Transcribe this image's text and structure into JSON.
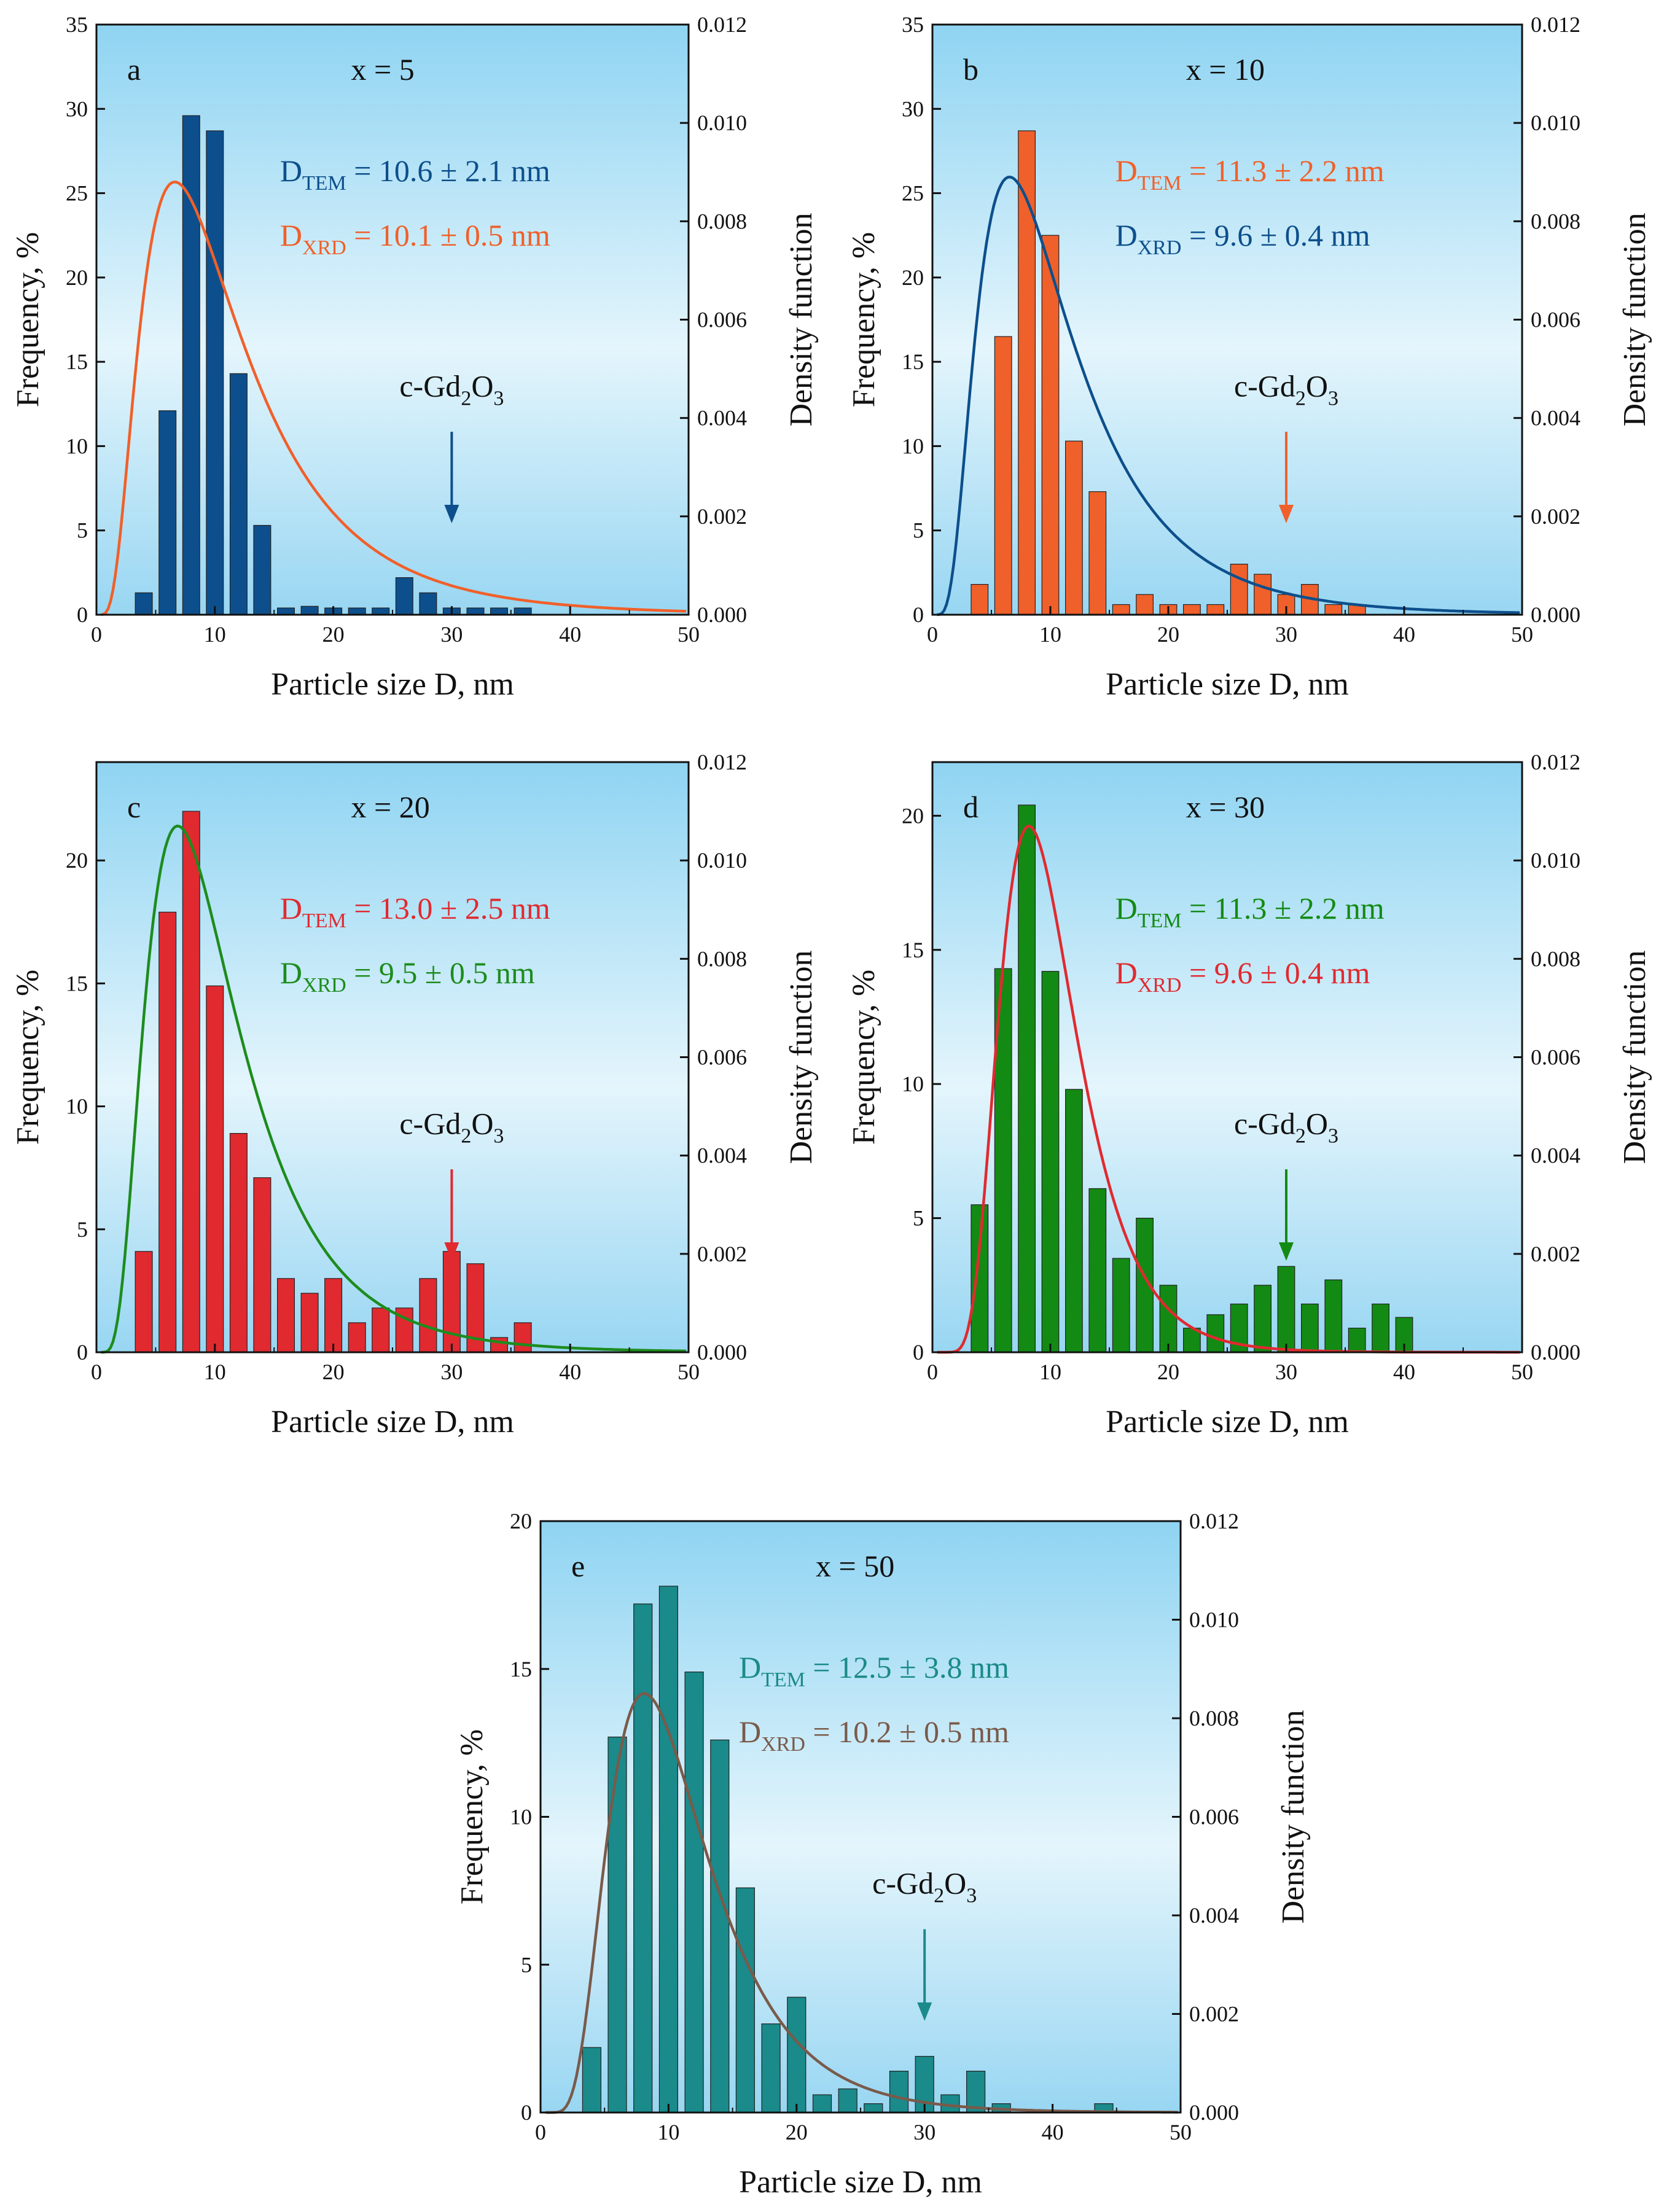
{
  "chart_data": [
    {
      "type": "bar",
      "panel_label": "a",
      "composition": "x = 5",
      "bar_color": "#0d4f8c",
      "curve_color": "#f0602a",
      "bars_x": [
        4,
        6,
        8,
        10,
        12,
        14,
        16,
        18,
        20,
        22,
        24,
        26,
        28,
        30,
        32,
        34,
        36
      ],
      "bars_y": [
        1.3,
        12.1,
        29.6,
        28.7,
        14.3,
        5.3,
        0.4,
        0.5,
        0.4,
        0.4,
        0.4,
        2.2,
        1.3,
        0.4,
        0.4,
        0.4,
        0.4
      ],
      "density_curve": {
        "type": "lognormal",
        "d0": 10.1,
        "sigma": 0.65
      },
      "dim_lines": [
        {
          "main": "D",
          "sub": "TEM",
          "value": " = 10.6 ± 2.1 nm",
          "color": "#0d4f8c"
        },
        {
          "main": "D",
          "sub": "XRD",
          "value": " = 10.1 ± 0.5 nm",
          "color": "#f0602a"
        }
      ],
      "phase_label": {
        "prefix": "c-Gd",
        "sub1": "2",
        "mid": "O",
        "sub2": "3"
      },
      "arrow_x": 30,
      "arrow_color": "#0d4f8c",
      "xlabel": "Particle size D, nm",
      "ylabel": "Frequency, %",
      "y2label": "Density function",
      "xlim": [
        0,
        50
      ],
      "xticks": [
        0,
        10,
        20,
        30,
        40,
        50
      ],
      "ylim": [
        0,
        35
      ],
      "yticks": [
        0,
        5,
        10,
        15,
        20,
        25,
        30,
        35
      ],
      "y2lim": [
        0,
        0.012
      ],
      "y2ticks": [
        "0.000",
        "0.002",
        "0.004",
        "0.006",
        "0.008",
        "0.010",
        "0.012"
      ]
    },
    {
      "type": "bar",
      "panel_label": "b",
      "composition": "x = 10",
      "bar_color": "#f0602a",
      "curve_color": "#0d4f8c",
      "bars_x": [
        4,
        6,
        8,
        10,
        12,
        14,
        16,
        18,
        20,
        22,
        24,
        26,
        28,
        30,
        32,
        34,
        36
      ],
      "bars_y": [
        1.8,
        16.5,
        28.7,
        22.5,
        10.3,
        7.3,
        0.6,
        1.2,
        0.6,
        0.6,
        0.6,
        3.0,
        2.4,
        1.2,
        1.8,
        0.6,
        0.6
      ],
      "density_curve": {
        "type": "lognormal",
        "d0": 9.6,
        "sigma": 0.62
      },
      "dim_lines": [
        {
          "main": "D",
          "sub": "TEM",
          "value": " = 11.3 ± 2.2 nm",
          "color": "#f0602a"
        },
        {
          "main": "D",
          "sub": "XRD",
          "value": " =   9.6 ± 0.4 nm",
          "color": "#0d4f8c"
        }
      ],
      "phase_label": {
        "prefix": "c-Gd",
        "sub1": "2",
        "mid": "O",
        "sub2": "3"
      },
      "arrow_x": 30,
      "arrow_color": "#f0602a",
      "xlabel": "Particle size D, nm",
      "ylabel": "Frequency, %",
      "y2label": "Density function",
      "xlim": [
        0,
        50
      ],
      "xticks": [
        0,
        10,
        20,
        30,
        40,
        50
      ],
      "ylim": [
        0,
        35
      ],
      "yticks": [
        0,
        5,
        10,
        15,
        20,
        25,
        30,
        35
      ],
      "y2lim": [
        0,
        0.012
      ],
      "y2ticks": [
        "0.000",
        "0.002",
        "0.004",
        "0.006",
        "0.008",
        "0.010",
        "0.012"
      ]
    },
    {
      "type": "bar",
      "panel_label": "c",
      "composition": "x = 20",
      "bar_color": "#e02a30",
      "curve_color": "#1d8c1d",
      "bars_x": [
        4,
        6,
        8,
        10,
        12,
        14,
        16,
        18,
        20,
        22,
        24,
        26,
        28,
        30,
        32,
        34,
        36
      ],
      "bars_y": [
        4.1,
        17.9,
        22.0,
        14.9,
        8.9,
        7.1,
        3.0,
        2.4,
        3.0,
        1.2,
        1.8,
        1.8,
        3.0,
        4.1,
        3.6,
        0.6,
        1.2
      ],
      "density_curve": {
        "type": "lognormal",
        "d0": 9.5,
        "sigma": 0.57
      },
      "dim_lines": [
        {
          "main": "D",
          "sub": "TEM",
          "value": " = 13.0 ± 2.5 nm",
          "color": "#e02a30"
        },
        {
          "main": "D",
          "sub": "XRD",
          "value": " =   9.5 ± 0.5 nm",
          "color": "#1d8c1d"
        }
      ],
      "phase_label": {
        "prefix": "c-Gd",
        "sub1": "2",
        "mid": "O",
        "sub2": "3"
      },
      "arrow_x": 30,
      "arrow_color": "#e02a30",
      "xlabel": "Particle size D, nm",
      "ylabel": "Frequency, %",
      "y2label": "Density function",
      "xlim": [
        0,
        50
      ],
      "xticks": [
        0,
        10,
        20,
        30,
        40,
        50
      ],
      "ylim": [
        0,
        24
      ],
      "yticks": [
        0,
        5,
        10,
        15,
        20
      ],
      "y2lim": [
        0,
        0.012
      ],
      "y2ticks": [
        "0.000",
        "0.002",
        "0.004",
        "0.006",
        "0.008",
        "0.010",
        "0.012"
      ]
    },
    {
      "type": "bar",
      "panel_label": "d",
      "composition": "x = 30",
      "bar_color": "#138a13",
      "curve_color": "#e02a30",
      "bars_x": [
        4,
        6,
        8,
        10,
        12,
        14,
        16,
        18,
        20,
        22,
        24,
        26,
        28,
        30,
        32,
        34,
        36,
        38,
        40
      ],
      "bars_y": [
        5.5,
        14.3,
        20.4,
        14.2,
        9.8,
        6.1,
        3.5,
        5.0,
        2.5,
        0.9,
        1.4,
        1.8,
        2.5,
        3.2,
        1.8,
        2.7,
        0.9,
        1.8,
        1.3
      ],
      "density_curve": {
        "type": "lognormal",
        "d0": 9.6,
        "sigma": 0.4
      },
      "dim_lines": [
        {
          "main": "D",
          "sub": "TEM",
          "value": " = 11.3 ± 2.2 nm",
          "color": "#138a13"
        },
        {
          "main": "D",
          "sub": "XRD",
          "value": " =   9.6 ± 0.4 nm",
          "color": "#e02a30"
        }
      ],
      "phase_label": {
        "prefix": "c-Gd",
        "sub1": "2",
        "mid": "O",
        "sub2": "3"
      },
      "arrow_x": 30,
      "arrow_color": "#138a13",
      "xlabel": "Particle size D, nm",
      "ylabel": "Frequency, %",
      "y2label": "Density function",
      "xlim": [
        0,
        50
      ],
      "xticks": [
        0,
        10,
        20,
        30,
        40,
        50
      ],
      "ylim": [
        0,
        22
      ],
      "yticks": [
        0,
        5,
        10,
        15,
        20
      ],
      "y2lim": [
        0,
        0.012
      ],
      "y2ticks": [
        "0.000",
        "0.002",
        "0.004",
        "0.006",
        "0.008",
        "0.010",
        "0.012"
      ]
    },
    {
      "type": "bar",
      "panel_label": "e",
      "composition": "x = 50",
      "bar_color": "#1a8a8a",
      "curve_color": "#7a5a4a",
      "bars_x": [
        4,
        6,
        8,
        10,
        12,
        14,
        16,
        18,
        20,
        22,
        24,
        26,
        28,
        30,
        32,
        34,
        36,
        44
      ],
      "bars_y": [
        2.2,
        12.7,
        17.2,
        17.8,
        14.9,
        12.6,
        7.6,
        3.0,
        3.9,
        0.6,
        0.8,
        0.3,
        1.4,
        1.9,
        0.6,
        1.4,
        0.3,
        0.3
      ],
      "density_curve": {
        "type": "lognormal",
        "d0": 10.2,
        "sigma": 0.48
      },
      "dim_lines": [
        {
          "main": "D",
          "sub": "TEM",
          "value": " = 12.5 ± 3.8 nm",
          "color": "#1a8a8a"
        },
        {
          "main": "D",
          "sub": "XRD",
          "value": " = 10.2 ± 0.5 nm",
          "color": "#7a5a4a"
        }
      ],
      "phase_label": {
        "prefix": "c-Gd",
        "sub1": "2",
        "mid": "O",
        "sub2": "3"
      },
      "arrow_x": 30,
      "arrow_color": "#1a8a8a",
      "xlabel": "Particle size D, nm",
      "ylabel": "Frequency, %",
      "y2label": "Density function",
      "xlim": [
        0,
        50
      ],
      "xticks": [
        0,
        10,
        20,
        30,
        40,
        50
      ],
      "ylim": [
        0,
        20
      ],
      "yticks": [
        0,
        5,
        10,
        15,
        20
      ],
      "y2lim": [
        0,
        0.012
      ],
      "y2ticks": [
        "0.000",
        "0.002",
        "0.004",
        "0.006",
        "0.008",
        "0.010",
        "0.012"
      ]
    }
  ]
}
